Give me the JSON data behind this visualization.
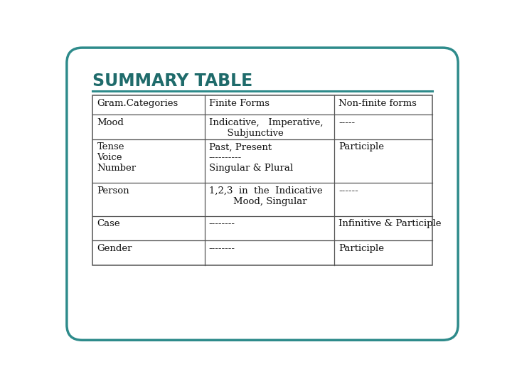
{
  "title": "SUMMARY TABLE",
  "title_color": "#1f6b6b",
  "title_fontsize": 17,
  "background_color": "#ffffff",
  "border_color": "#2e8b8b",
  "separator_color": "#2e8b8b",
  "table_border_color": "#555555",
  "header_row": [
    "Gram.Categories",
    "Finite Forms",
    "Non-finite forms"
  ],
  "rows": [
    [
      "Mood",
      "Indicative,   Imperative,\n      Subjunctive",
      "-----"
    ],
    [
      "Tense\nVoice\nNumber",
      "Past, Present\n----------\nSingular & Plural",
      "Participle"
    ],
    [
      "Person",
      "1,2,3  in  the  Indicative\n        Mood, Singular",
      "------"
    ],
    [
      "Case",
      "--------",
      "Infinitive & Participle"
    ],
    [
      "Gender",
      "--------",
      "Participle"
    ]
  ],
  "figsize": [
    7.2,
    5.4
  ],
  "dpi": 100
}
